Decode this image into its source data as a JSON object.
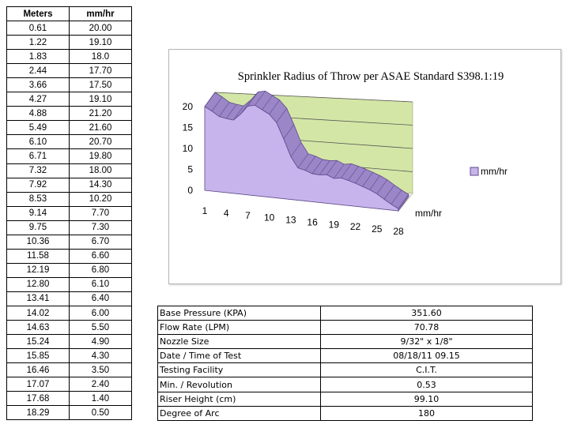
{
  "data_table": {
    "headers": [
      "Meters",
      "mm/hr"
    ],
    "rows": [
      [
        "0.61",
        "20.00"
      ],
      [
        "1.22",
        "19.10"
      ],
      [
        "1.83",
        "18.0"
      ],
      [
        "2.44",
        "17.70"
      ],
      [
        "3.66",
        "17.50"
      ],
      [
        "4.27",
        "19.10"
      ],
      [
        "4.88",
        "21.20"
      ],
      [
        "5.49",
        "21.60"
      ],
      [
        "6.10",
        "20.70"
      ],
      [
        "6.71",
        "19.80"
      ],
      [
        "7.32",
        "18.00"
      ],
      [
        "7.92",
        "14.30"
      ],
      [
        "8.53",
        "10.20"
      ],
      [
        "9.14",
        "7.70"
      ],
      [
        "9.75",
        "7.30"
      ],
      [
        "10.36",
        "6.70"
      ],
      [
        "11.58",
        "6.60"
      ],
      [
        "12.19",
        "6.80"
      ],
      [
        "12.80",
        "6.10"
      ],
      [
        "13.41",
        "6.40"
      ],
      [
        "14.02",
        "6.00"
      ],
      [
        "14.63",
        "5.50"
      ],
      [
        "15.24",
        "4.90"
      ],
      [
        "15.85",
        "4.30"
      ],
      [
        "16.46",
        "3.50"
      ],
      [
        "17.07",
        "2.40"
      ],
      [
        "17.68",
        "1.40"
      ],
      [
        "18.29",
        "0.50"
      ]
    ]
  },
  "chart_data": {
    "type": "area",
    "title": "Sprinkler Radius of Throw per ASAE Standard S398.1:19",
    "x": [
      1,
      2,
      3,
      4,
      5,
      6,
      7,
      8,
      9,
      10,
      11,
      12,
      13,
      14,
      15,
      16,
      17,
      18,
      19,
      20,
      21,
      22,
      23,
      24,
      25,
      26,
      27,
      28
    ],
    "x_tick_labels": [
      "1",
      "4",
      "7",
      "10",
      "13",
      "16",
      "19",
      "22",
      "25",
      "28"
    ],
    "y_tick_labels": [
      "20",
      "15",
      "10",
      "5",
      "0"
    ],
    "ylim": [
      0,
      20
    ],
    "series": [
      {
        "name": "mm/hr",
        "values": [
          20.0,
          19.1,
          18.0,
          17.7,
          17.5,
          19.1,
          21.2,
          21.6,
          20.7,
          19.8,
          18.0,
          14.3,
          10.2,
          7.7,
          7.3,
          6.7,
          6.6,
          6.8,
          6.1,
          6.4,
          6.0,
          5.5,
          4.9,
          4.3,
          3.5,
          2.4,
          1.4,
          0.5
        ]
      }
    ],
    "depth_axis_label": "mm/hr",
    "legend": {
      "position": "right",
      "label": "mm/hr"
    },
    "colors": {
      "area_front": "#c8b4ec",
      "area_top": "#9b86c8",
      "area_edge": "#5e4a8c",
      "back_wall": "#d4e6a6",
      "floor": "#ffffff"
    },
    "grid": true,
    "view": "3d"
  },
  "props_table": {
    "rows": [
      [
        "Base Pressure (KPA)",
        "351.60"
      ],
      [
        "Flow Rate (LPM)",
        "70.78"
      ],
      [
        "Nozzle Size",
        "9/32\" x 1/8\""
      ],
      [
        "Date / Time of Test",
        "08/18/11   09.15"
      ],
      [
        "Testing Facility",
        "C.I.T."
      ],
      [
        "Min. / Revolution",
        "0.53"
      ],
      [
        "Riser Height (cm)",
        "99.10"
      ],
      [
        "Degree of Arc",
        "180"
      ]
    ]
  }
}
